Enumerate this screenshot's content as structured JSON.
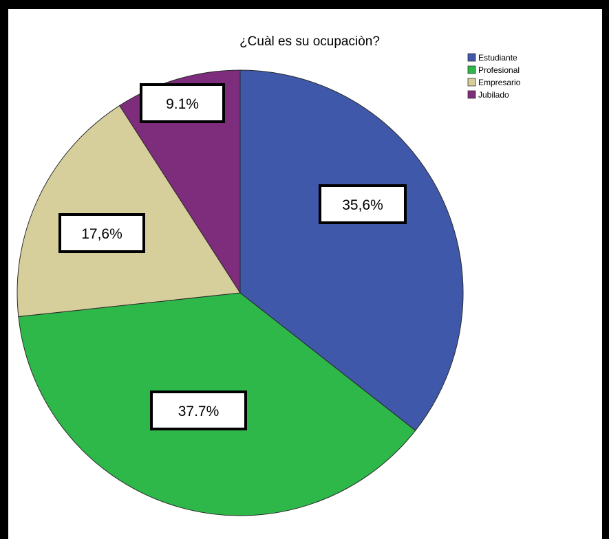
{
  "chart_data": {
    "type": "pie",
    "title": "¿Cuàl es su ocupaciòn?",
    "categories": [
      "Estudiante",
      "Profesional",
      "Empresario",
      "Jubilado"
    ],
    "values": [
      35.6,
      37.7,
      17.6,
      9.1
    ],
    "data_labels": [
      "35,6%",
      "37.7%",
      "17,6%",
      "9.1%"
    ],
    "colors": [
      "#3f58aa",
      "#2fb84a",
      "#d6ce9b",
      "#7e2c7c"
    ],
    "start_angle_deg": 0,
    "direction": "clockwise",
    "legend": {
      "placement": "top-right",
      "entries": [
        "Estudiante",
        "Profesional",
        "Empresario",
        "Jubilado"
      ]
    }
  }
}
